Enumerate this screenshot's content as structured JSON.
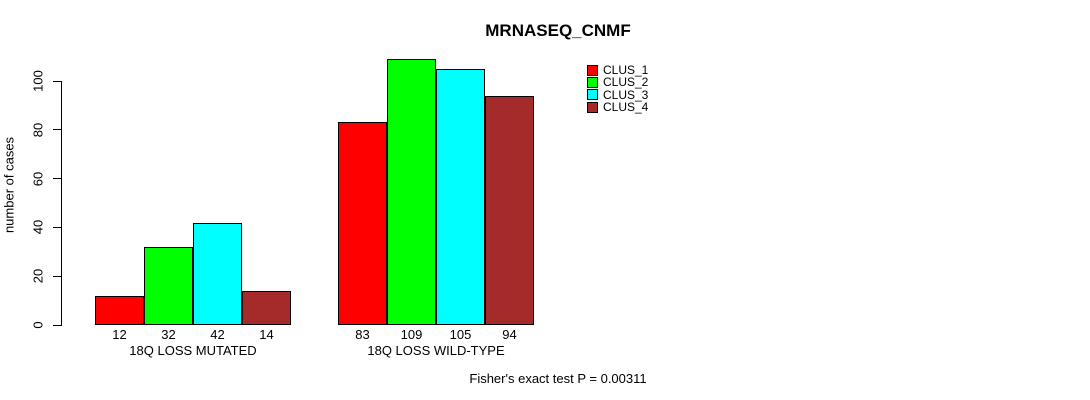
{
  "chart_data": {
    "type": "bar",
    "title": "MRNASEQ_CNMF",
    "xlabel": "",
    "ylabel": "number of cases",
    "categories": [
      "18Q LOSS MUTATED",
      "18Q LOSS WILD-TYPE"
    ],
    "series": [
      {
        "name": "CLUS_1",
        "color": "#ff0000",
        "values": [
          12,
          83
        ]
      },
      {
        "name": "CLUS_2",
        "color": "#00ff00",
        "values": [
          32,
          109
        ]
      },
      {
        "name": "CLUS_3",
        "color": "#00ffff",
        "values": [
          42,
          105
        ]
      },
      {
        "name": "CLUS_4",
        "color": "#a52a2a",
        "values": [
          14,
          94
        ]
      }
    ],
    "bar_value_labels": [
      [
        "12",
        "32",
        "42",
        "14"
      ],
      [
        "83",
        "109",
        "105",
        "94"
      ]
    ],
    "yticks": [
      "0",
      "20",
      "40",
      "60",
      "80",
      "100"
    ],
    "ylim": [
      0,
      100
    ],
    "grid": false,
    "legend_position": "top-right",
    "legend_entries": [
      "CLUS_1",
      "CLUS_2",
      "CLUS_3",
      "CLUS_4"
    ],
    "annotation": "Fisher's exact test P = 0.00311"
  }
}
